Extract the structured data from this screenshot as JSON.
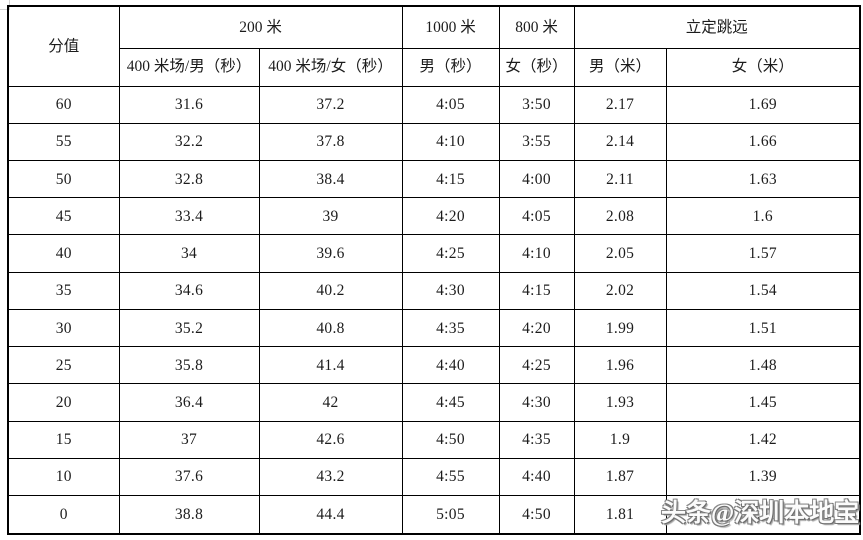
{
  "page": {
    "background": "#ffffff",
    "border_color": "#000000",
    "text_color": "#1c1c1c"
  },
  "watermark": {
    "text": "头条@深圳本地宝"
  },
  "table": {
    "header": {
      "score": "分值",
      "group_200m": "200 米",
      "group_1000m": "1000 米",
      "group_800m": "800 米",
      "group_long_jump": "立定跳远",
      "sub_400m_track_male_sec": "400 米场/男（秒）",
      "sub_400m_track_female_sec": "400 米场/女（秒）",
      "sub_1000m_male_sec": "男（秒）",
      "sub_800m_female_sec": "女（秒）",
      "sub_jump_male_m": "男（米）",
      "sub_jump_female_m": "女（米）"
    },
    "rows": [
      [
        "60",
        "31.6",
        "37.2",
        "4:05",
        "3:50",
        "2.17",
        "1.69"
      ],
      [
        "55",
        "32.2",
        "37.8",
        "4:10",
        "3:55",
        "2.14",
        "1.66"
      ],
      [
        "50",
        "32.8",
        "38.4",
        "4:15",
        "4:00",
        "2.11",
        "1.63"
      ],
      [
        "45",
        "33.4",
        "39",
        "4:20",
        "4:05",
        "2.08",
        "1.6"
      ],
      [
        "40",
        "34",
        "39.6",
        "4:25",
        "4:10",
        "2.05",
        "1.57"
      ],
      [
        "35",
        "34.6",
        "40.2",
        "4:30",
        "4:15",
        "2.02",
        "1.54"
      ],
      [
        "30",
        "35.2",
        "40.8",
        "4:35",
        "4:20",
        "1.99",
        "1.51"
      ],
      [
        "25",
        "35.8",
        "41.4",
        "4:40",
        "4:25",
        "1.96",
        "1.48"
      ],
      [
        "20",
        "36.4",
        "42",
        "4:45",
        "4:30",
        "1.93",
        "1.45"
      ],
      [
        "15",
        "37",
        "42.6",
        "4:50",
        "4:35",
        "1.9",
        "1.42"
      ],
      [
        "10",
        "37.6",
        "43.2",
        "4:55",
        "4:40",
        "1.87",
        "1.39"
      ],
      [
        "0",
        "38.8",
        "44.4",
        "5:05",
        "4:50",
        "1.81",
        "1.33"
      ]
    ]
  }
}
